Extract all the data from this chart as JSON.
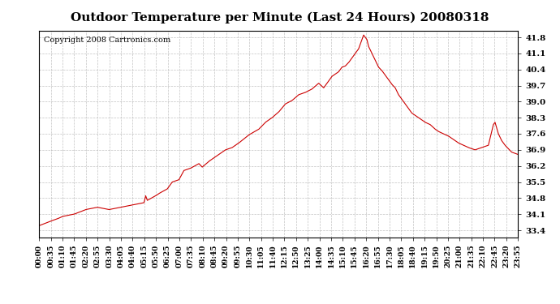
{
  "title": "Outdoor Temperature per Minute (Last 24 Hours) 20080318",
  "copyright": "Copyright 2008 Cartronics.com",
  "line_color": "#cc0000",
  "bg_color": "#ffffff",
  "plot_bg_color": "#ffffff",
  "grid_color": "#aaaaaa",
  "yticks": [
    33.4,
    34.1,
    34.8,
    35.5,
    36.2,
    36.9,
    37.6,
    38.3,
    39.0,
    39.7,
    40.4,
    41.1,
    41.8
  ],
  "ylim": [
    33.1,
    42.1
  ],
  "xtick_labels": [
    "00:00",
    "00:35",
    "01:10",
    "01:45",
    "02:20",
    "02:55",
    "03:30",
    "04:05",
    "04:40",
    "05:15",
    "05:50",
    "06:25",
    "07:00",
    "07:35",
    "08:10",
    "08:45",
    "09:20",
    "09:55",
    "10:30",
    "11:05",
    "11:40",
    "12:15",
    "12:50",
    "13:25",
    "14:00",
    "14:35",
    "15:10",
    "15:45",
    "16:20",
    "16:55",
    "17:30",
    "18:05",
    "18:40",
    "19:15",
    "19:50",
    "20:25",
    "21:00",
    "21:35",
    "22:10",
    "22:45",
    "23:20",
    "23:55"
  ],
  "num_minutes": 1440,
  "key_points": {
    "0": 33.6,
    "35": 33.8,
    "55": 33.9,
    "70": 34.0,
    "105": 34.1,
    "140": 34.3,
    "175": 34.4,
    "210": 34.3,
    "245": 34.4,
    "280": 34.5,
    "315": 34.6,
    "320": 34.9,
    "325": 34.7,
    "350": 34.9,
    "360": 35.0,
    "385": 35.2,
    "400": 35.5,
    "420": 35.6,
    "435": 36.0,
    "455": 36.1,
    "480": 36.3,
    "490": 36.15,
    "510": 36.4,
    "540": 36.7,
    "560": 36.9,
    "580": 37.0,
    "600": 37.2,
    "630": 37.55,
    "660": 37.8,
    "680": 38.1,
    "700": 38.3,
    "720": 38.55,
    "740": 38.9,
    "760": 39.05,
    "780": 39.3,
    "800": 39.4,
    "820": 39.55,
    "840": 39.8,
    "855": 39.6,
    "865": 39.8,
    "880": 40.1,
    "900": 40.3,
    "910": 40.5,
    "920": 40.55,
    "930": 40.7,
    "940": 40.9,
    "950": 41.1,
    "960": 41.3,
    "965": 41.5,
    "970": 41.7,
    "975": 41.9,
    "980": 41.8,
    "985": 41.7,
    "990": 41.4,
    "1000": 41.1,
    "1010": 40.8,
    "1020": 40.5,
    "1030": 40.35,
    "1040": 40.15,
    "1050": 39.95,
    "1060": 39.75,
    "1070": 39.6,
    "1080": 39.3,
    "1090": 39.1,
    "1100": 38.9,
    "1110": 38.7,
    "1120": 38.5,
    "1140": 38.3,
    "1160": 38.1,
    "1175": 38.0,
    "1190": 37.8,
    "1200": 37.7,
    "1215": 37.6,
    "1230": 37.5,
    "1260": 37.2,
    "1290": 37.0,
    "1310": 36.9,
    "1330": 37.0,
    "1350": 37.1,
    "1365": 38.0,
    "1370": 38.1,
    "1380": 37.6,
    "1390": 37.3,
    "1400": 37.1,
    "1410": 36.95,
    "1420": 36.8,
    "1430": 36.75,
    "1439": 36.7
  }
}
